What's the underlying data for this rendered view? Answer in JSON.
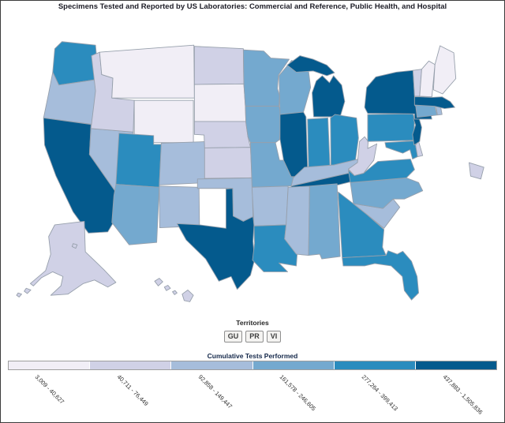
{
  "title": "Specimens Tested and Reported by US Laboratories: Commercial and Reference, Public Health, and Hospital",
  "territories": {
    "label": "Territories",
    "buttons": [
      "GU",
      "PR",
      "VI"
    ]
  },
  "legend": {
    "title": "Cumulative Tests Performed",
    "bins": [
      {
        "range": "3,009 - 40,627",
        "color": "#f1eef6"
      },
      {
        "range": "40,711 - 76,449",
        "color": "#d0d1e6"
      },
      {
        "range": "92,858 - 149,447",
        "color": "#a6bddb"
      },
      {
        "range": "161,578 - 246,605",
        "color": "#74a9cf"
      },
      {
        "range": "277,264 - 399,413",
        "color": "#2b8cbe"
      },
      {
        "range": "437,883 - 1,505,836",
        "color": "#045a8d"
      }
    ]
  },
  "map": {
    "border_color": "#97a0ac",
    "states": [
      {
        "id": "WA",
        "name": "Washington",
        "bin": 5
      },
      {
        "id": "OR",
        "name": "Oregon",
        "bin": 3
      },
      {
        "id": "CA",
        "name": "California",
        "bin": 6
      },
      {
        "id": "NV",
        "name": "Nevada",
        "bin": 3
      },
      {
        "id": "ID",
        "name": "Idaho",
        "bin": 2
      },
      {
        "id": "MT",
        "name": "Montana",
        "bin": 1
      },
      {
        "id": "WY",
        "name": "Wyoming",
        "bin": 1
      },
      {
        "id": "UT",
        "name": "Utah",
        "bin": 5
      },
      {
        "id": "CO",
        "name": "Colorado",
        "bin": 3
      },
      {
        "id": "AZ",
        "name": "Arizona",
        "bin": 4
      },
      {
        "id": "NM",
        "name": "New Mexico",
        "bin": 3
      },
      {
        "id": "ND",
        "name": "North Dakota",
        "bin": 2
      },
      {
        "id": "SD",
        "name": "South Dakota",
        "bin": 1
      },
      {
        "id": "NE",
        "name": "Nebraska",
        "bin": 2
      },
      {
        "id": "KS",
        "name": "Kansas",
        "bin": 2
      },
      {
        "id": "OK",
        "name": "Oklahoma",
        "bin": 3
      },
      {
        "id": "TX",
        "name": "Texas",
        "bin": 6
      },
      {
        "id": "MN",
        "name": "Minnesota",
        "bin": 4
      },
      {
        "id": "IA",
        "name": "Iowa",
        "bin": 4
      },
      {
        "id": "MO",
        "name": "Missouri",
        "bin": 4
      },
      {
        "id": "AR",
        "name": "Arkansas",
        "bin": 3
      },
      {
        "id": "LA",
        "name": "Louisiana",
        "bin": 5
      },
      {
        "id": "WI",
        "name": "Wisconsin",
        "bin": 4
      },
      {
        "id": "IL",
        "name": "Illinois",
        "bin": 6
      },
      {
        "id": "MI",
        "name": "Michigan",
        "bin": 6
      },
      {
        "id": "IN",
        "name": "Indiana",
        "bin": 5
      },
      {
        "id": "OH",
        "name": "Ohio",
        "bin": 5
      },
      {
        "id": "KY",
        "name": "Kentucky",
        "bin": 3
      },
      {
        "id": "TN",
        "name": "Tennessee",
        "bin": 6
      },
      {
        "id": "MS",
        "name": "Mississippi",
        "bin": 3
      },
      {
        "id": "AL",
        "name": "Alabama",
        "bin": 4
      },
      {
        "id": "GA",
        "name": "Georgia",
        "bin": 5
      },
      {
        "id": "FL",
        "name": "Florida",
        "bin": 5
      },
      {
        "id": "SC",
        "name": "South Carolina",
        "bin": 3
      },
      {
        "id": "NC",
        "name": "North Carolina",
        "bin": 4
      },
      {
        "id": "VA",
        "name": "Virginia",
        "bin": 5
      },
      {
        "id": "WV",
        "name": "West Virginia",
        "bin": 2
      },
      {
        "id": "MD",
        "name": "Maryland",
        "bin": 5
      },
      {
        "id": "DE",
        "name": "Delaware",
        "bin": 2
      },
      {
        "id": "PA",
        "name": "Pennsylvania",
        "bin": 5
      },
      {
        "id": "NJ",
        "name": "New Jersey",
        "bin": 6
      },
      {
        "id": "NY",
        "name": "New York",
        "bin": 6
      },
      {
        "id": "CT",
        "name": "Connecticut",
        "bin": 4
      },
      {
        "id": "RI",
        "name": "Rhode Island",
        "bin": 3
      },
      {
        "id": "MA",
        "name": "Massachusetts",
        "bin": 6
      },
      {
        "id": "VT",
        "name": "Vermont",
        "bin": 2
      },
      {
        "id": "NH",
        "name": "New Hampshire",
        "bin": 1
      },
      {
        "id": "ME",
        "name": "Maine",
        "bin": 1
      },
      {
        "id": "AK",
        "name": "Alaska",
        "bin": 2
      },
      {
        "id": "HI",
        "name": "Hawaii",
        "bin": 2
      },
      {
        "id": "PR",
        "name": "Puerto Rico",
        "bin": 2
      }
    ]
  }
}
